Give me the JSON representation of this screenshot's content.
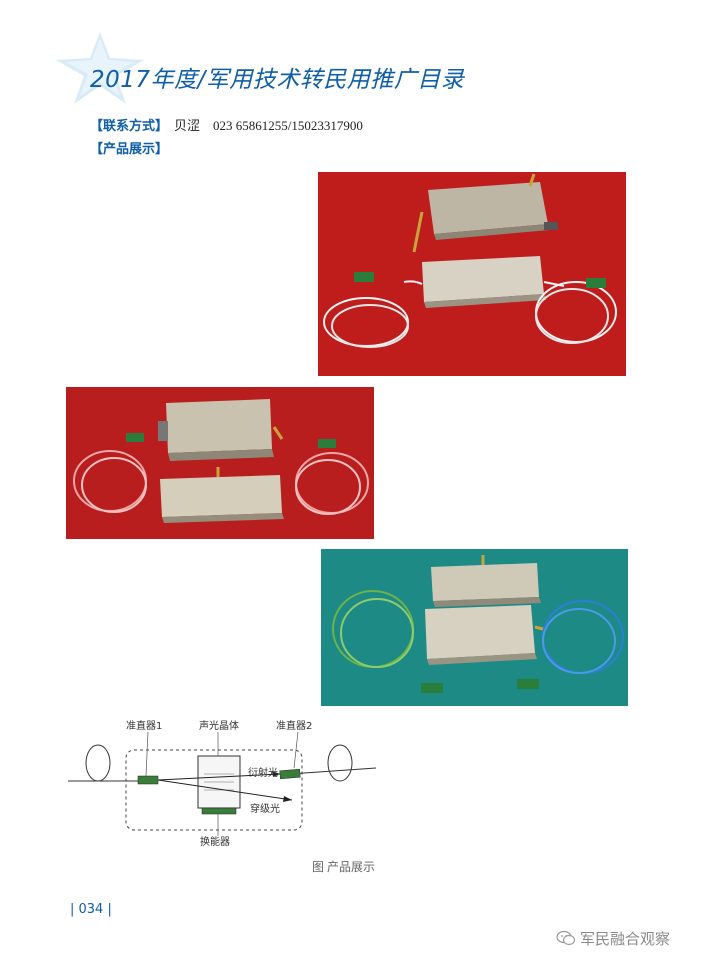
{
  "header": {
    "title": "2017年度/军用技术转民用推广目录"
  },
  "contact": {
    "label": "【联系方式】",
    "value": "贝涩　023 65861255/15023317900"
  },
  "showcase": {
    "label": "【产品展示】"
  },
  "diagram": {
    "labels": {
      "collimator1": "准直器1",
      "crystal": "声光晶体",
      "collimator2": "准直器2",
      "diffracted": "衍射光",
      "transmitted": "穿级光",
      "transducer": "换能器"
    }
  },
  "caption": "图  产品展示",
  "page_number": "| 034 |",
  "brand": "军民融合观察",
  "colors": {
    "accent": "#0f5ea8",
    "photo1_bg": "#c81f1f",
    "photo2_bg": "#b81e1e",
    "photo3_bg": "#1e8a86"
  }
}
